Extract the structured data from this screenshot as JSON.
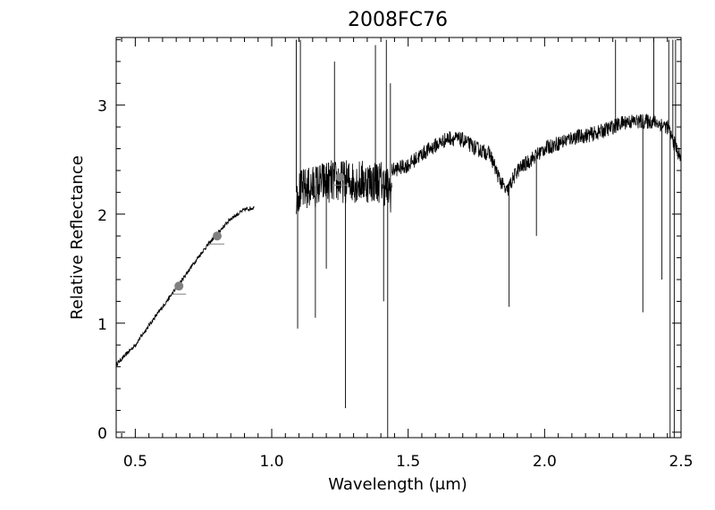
{
  "chart_data": {
    "type": "line",
    "title": "2008FC76",
    "xlabel": "Wavelength (",
    "xlabel_unit": "μm",
    "xlabel_close": ")",
    "ylabel": "Relative Reflectance",
    "xlim": [
      0.43,
      2.5
    ],
    "ylim": [
      -0.05,
      3.62
    ],
    "xticks": [
      0.5,
      1.0,
      1.5,
      2.0,
      2.5
    ],
    "xtick_labels": [
      "0.5",
      "1.0",
      "1.5",
      "2.0",
      "2.5"
    ],
    "yticks": [
      0,
      1,
      2,
      3
    ],
    "ytick_labels": [
      "0",
      "1",
      "2",
      "3"
    ],
    "grid": false,
    "legend": "none",
    "series": [
      {
        "style": "noisy-line",
        "color": "#000000",
        "noise": 0.02,
        "x": [
          0.43,
          0.5,
          0.55,
          0.6,
          0.65,
          0.7,
          0.75,
          0.8,
          0.85,
          0.9,
          0.935
        ],
        "y": [
          0.62,
          0.8,
          0.98,
          1.15,
          1.32,
          1.5,
          1.67,
          1.82,
          1.96,
          2.04,
          2.06
        ]
      },
      {
        "style": "noisy-line",
        "color": "#000000",
        "noise": 0.2,
        "x": [
          1.09,
          1.15,
          1.2,
          1.25,
          1.3,
          1.35,
          1.4,
          1.44
        ],
        "y": [
          2.2,
          2.25,
          2.3,
          2.3,
          2.3,
          2.3,
          2.3,
          2.2
        ],
        "spikes": [
          {
            "x": 1.09,
            "y": 3.6
          },
          {
            "x": 1.095,
            "y": 0.95
          },
          {
            "x": 1.105,
            "y": 3.6
          },
          {
            "x": 1.16,
            "y": 1.05
          },
          {
            "x": 1.2,
            "y": 1.5
          },
          {
            "x": 1.23,
            "y": 3.4
          },
          {
            "x": 1.27,
            "y": 0.22
          },
          {
            "x": 1.38,
            "y": 3.55
          },
          {
            "x": 1.41,
            "y": 1.2
          },
          {
            "x": 1.42,
            "y": 3.6
          },
          {
            "x": 1.425,
            "y": -0.05
          },
          {
            "x": 1.435,
            "y": 3.2
          }
        ]
      },
      {
        "style": "noisy-line",
        "color": "#000000",
        "noise": 0.07,
        "x": [
          1.44,
          1.5,
          1.55,
          1.6,
          1.65,
          1.7,
          1.75,
          1.8,
          1.83,
          1.86,
          1.9,
          1.95,
          2.0,
          2.05,
          2.1,
          2.15,
          2.2,
          2.25,
          2.3,
          2.35,
          2.4,
          2.45,
          2.5
        ],
        "y": [
          2.4,
          2.45,
          2.55,
          2.63,
          2.7,
          2.68,
          2.6,
          2.55,
          2.35,
          2.2,
          2.4,
          2.5,
          2.6,
          2.65,
          2.7,
          2.72,
          2.75,
          2.8,
          2.85,
          2.85,
          2.85,
          2.8,
          2.5
        ],
        "spikes": [
          {
            "x": 1.87,
            "y": 1.15
          },
          {
            "x": 1.97,
            "y": 1.8
          },
          {
            "x": 2.26,
            "y": 3.6
          },
          {
            "x": 2.36,
            "y": 1.1
          },
          {
            "x": 2.4,
            "y": 3.6
          },
          {
            "x": 2.43,
            "y": 1.4
          },
          {
            "x": 2.455,
            "y": 3.6
          },
          {
            "x": 2.46,
            "y": -0.05
          },
          {
            "x": 2.47,
            "y": 3.6
          },
          {
            "x": 2.475,
            "y": -0.05
          },
          {
            "x": 2.48,
            "y": 3.6
          }
        ]
      }
    ],
    "photometry": {
      "style": "marker",
      "color": "#808080",
      "x": [
        0.66,
        0.8,
        1.25
      ],
      "y": [
        1.34,
        1.8,
        2.34
      ]
    }
  }
}
